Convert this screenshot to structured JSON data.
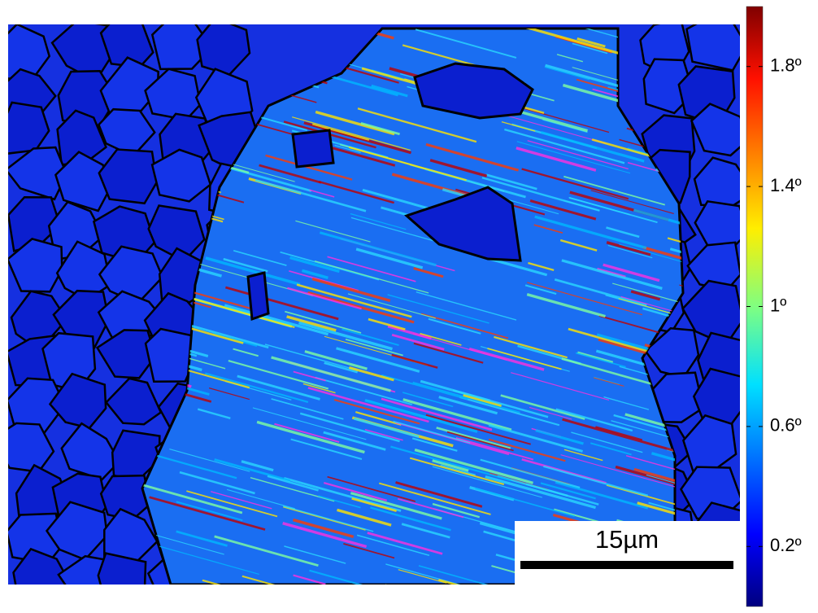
{
  "colorbar": {
    "lim": [
      0,
      2
    ],
    "colormap": "jet",
    "ticks": [
      {
        "value": 0.2,
        "label": "0.2º"
      },
      {
        "value": 0.6,
        "label": "0.6º"
      },
      {
        "value": 1,
        "label": "1º"
      },
      {
        "value": 1.4,
        "label": "1.4º"
      },
      {
        "value": 1.8,
        "label": "1.8º"
      }
    ]
  },
  "scale_bar": {
    "label": "15µm"
  }
}
